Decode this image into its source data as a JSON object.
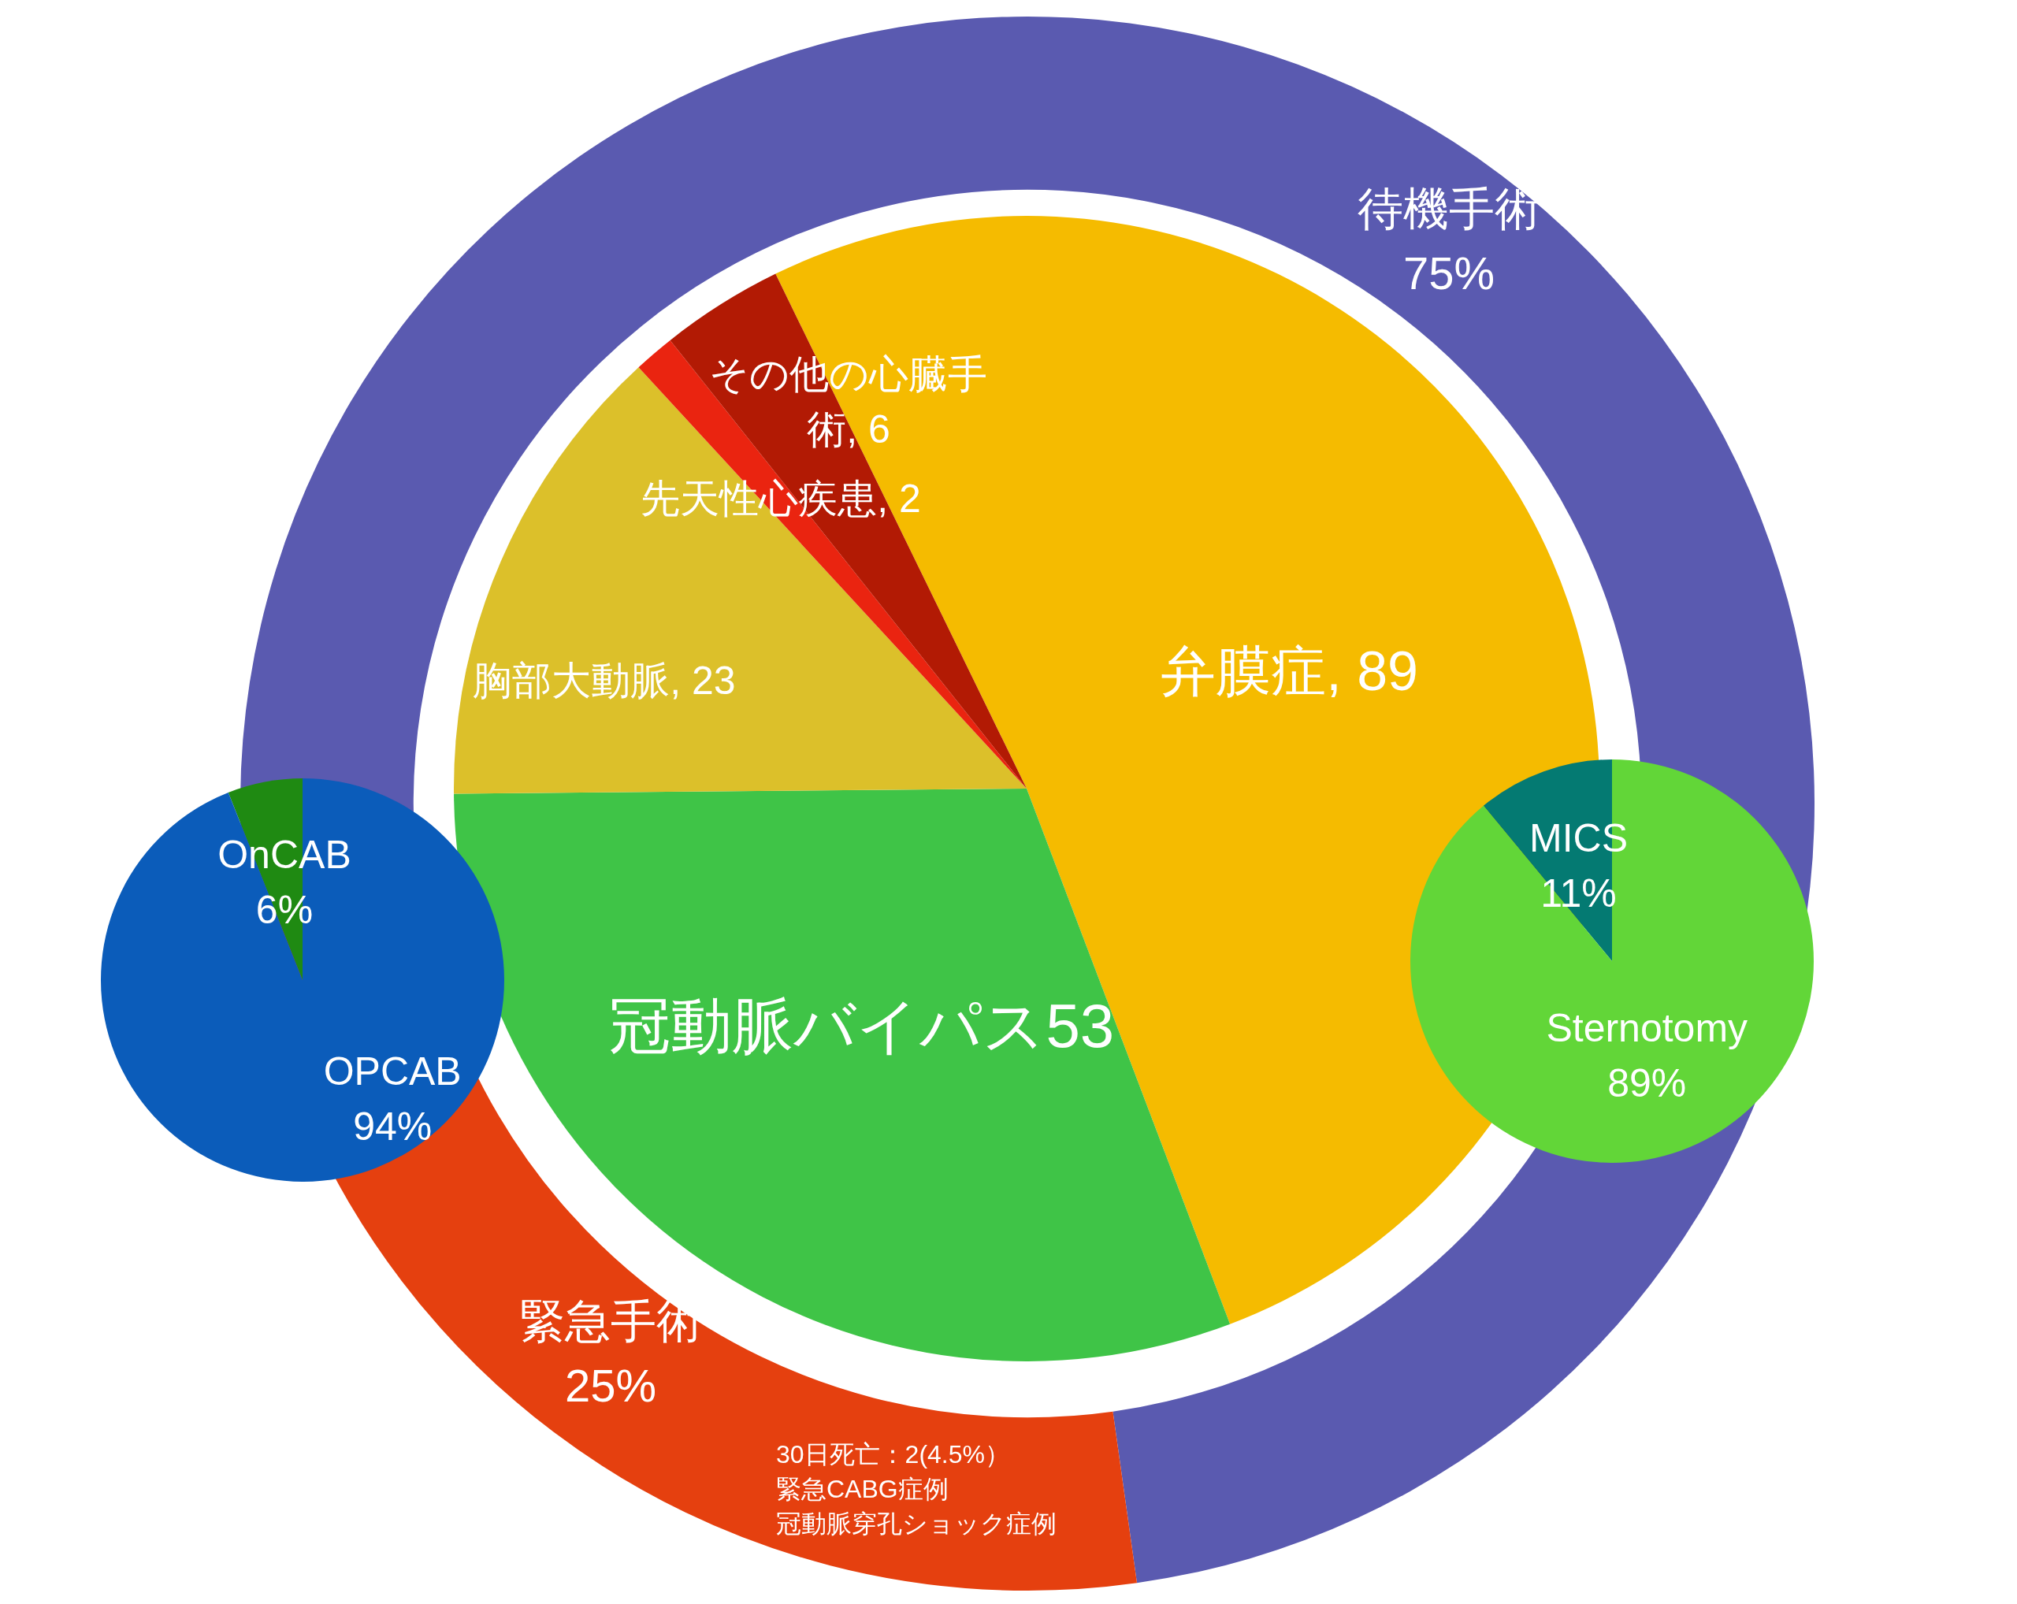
{
  "chart_data": [
    {
      "type": "donut",
      "categories": [
        "待機手術",
        "緊急手術"
      ],
      "values": [
        75,
        25
      ],
      "colors": [
        "#5a5ab0",
        "#e5400f"
      ],
      "value_labels": [
        "75%",
        "25%"
      ],
      "annotations": [
        "30日死亡：2(4.5%）",
        "緊急CABG症例",
        "冠動脈穿孔ショック症例"
      ]
    },
    {
      "type": "pie",
      "categories": [
        "弁膜症",
        "冠動脈バイパス",
        "胸部大動脈",
        "先天性心疾患",
        "その他の心臓手術"
      ],
      "values": [
        89,
        53,
        23,
        2,
        6
      ],
      "colors": [
        "#f5bb00",
        "#3fc447",
        "#dcc02a",
        "#ea2410",
        "#b21a04"
      ],
      "value_labels": [
        ", 89",
        "53",
        ", 23",
        ", 2",
        ", 6"
      ]
    },
    {
      "type": "pie",
      "categories": [
        "OnCAB",
        "OPCAB"
      ],
      "values": [
        6,
        94
      ],
      "colors": [
        "#1f8a12",
        "#0b5cba"
      ],
      "value_labels": [
        "6%",
        "94%"
      ]
    },
    {
      "type": "pie",
      "categories": [
        "MICS",
        "Sternotomy"
      ],
      "values": [
        11,
        89
      ],
      "colors": [
        "#047a72",
        "#62d638"
      ],
      "value_labels": [
        "11%",
        "89%"
      ]
    }
  ]
}
